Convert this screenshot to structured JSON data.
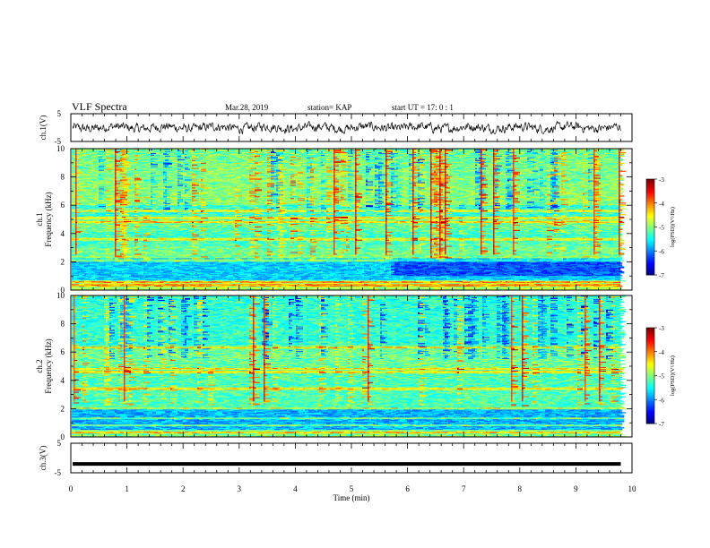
{
  "header": {
    "title": "VLF Spectra",
    "date": "Mar.28, 2019",
    "station": "station= KAP",
    "start_ut": "start  UT =   17: 0  : 1"
  },
  "chart_data": [
    {
      "type": "line",
      "name": "ch1-waveform",
      "ylabel": "ch.1(V)",
      "ylim": [
        -5,
        5
      ],
      "yticks": [
        "5",
        "-5"
      ],
      "xlim": [
        0,
        10
      ],
      "x_extent_min": 9.8,
      "description_values": "noisy signal fluctuating roughly between -1.5 and 1.5 V"
    },
    {
      "type": "heatmap",
      "name": "ch1-spectrogram",
      "ylabel_line1": "ch.1",
      "ylabel_line2": "Frequency (kHz)",
      "ylim": [
        0,
        10
      ],
      "yticks": [
        "0",
        "2",
        "4",
        "6",
        "8",
        "10"
      ],
      "xlim": [
        0,
        10
      ],
      "colorbar": {
        "label": "log(PSD)(V²/Hz)",
        "range": [
          -7,
          -3
        ],
        "ticks": [
          "-3",
          "-4",
          "-5",
          "-6",
          "-7"
        ]
      }
    },
    {
      "type": "heatmap",
      "name": "ch2-spectrogram",
      "ylabel_line1": "ch.2",
      "ylabel_line2": "Frequency (kHz)",
      "ylim": [
        0,
        10
      ],
      "yticks": [
        "0",
        "2",
        "4",
        "6",
        "8",
        "10"
      ],
      "xlim": [
        0,
        10
      ],
      "colorbar": {
        "label": "log(PSD)(V²/Hz)",
        "range": [
          -7,
          -3
        ],
        "ticks": [
          "-3",
          "-4",
          "-5",
          "-6",
          "-7"
        ]
      }
    },
    {
      "type": "line",
      "name": "ch3-waveform",
      "ylabel": "ch.3(V)",
      "ylim": [
        -5,
        5
      ],
      "yticks": [
        "5",
        "-5"
      ],
      "xlim": [
        0,
        10
      ],
      "constant_value": -2,
      "xlabel": "Time  (min)",
      "xticks": [
        "0",
        "1",
        "2",
        "3",
        "4",
        "5",
        "6",
        "7",
        "8",
        "9",
        "10"
      ]
    }
  ]
}
